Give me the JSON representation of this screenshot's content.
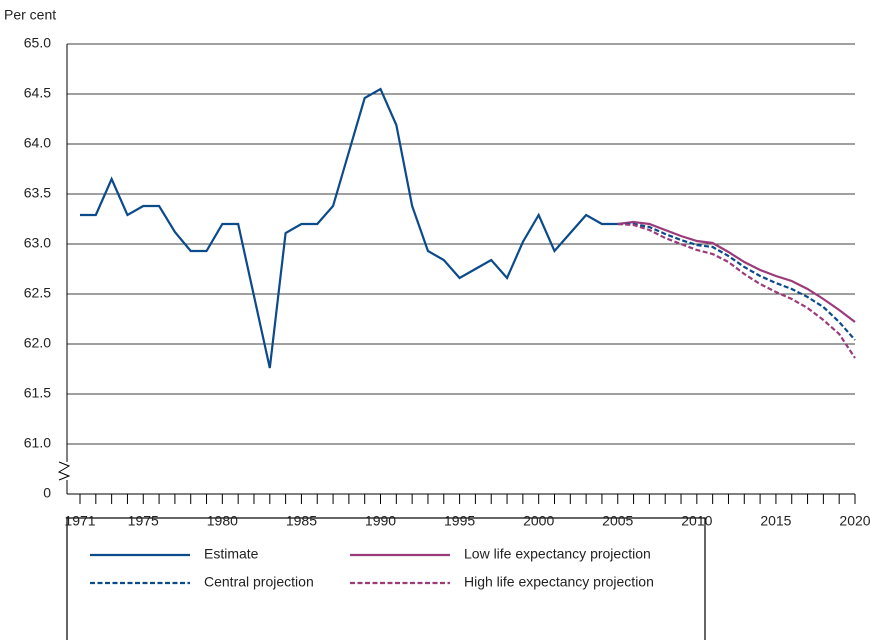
{
  "chart_data": {
    "type": "line",
    "y_label": "Per cent",
    "x": [
      1971,
      1972,
      1973,
      1974,
      1975,
      1976,
      1977,
      1978,
      1979,
      1980,
      1981,
      1982,
      1983,
      1984,
      1985,
      1986,
      1987,
      1988,
      1989,
      1990,
      1991,
      1992,
      1993,
      1994,
      1995,
      1996,
      1997,
      1998,
      1999,
      2000,
      2001,
      2002,
      2003,
      2004,
      2005,
      2006,
      2007,
      2008,
      2009,
      2010,
      2011,
      2012,
      2013,
      2014,
      2015,
      2016,
      2017,
      2018,
      2019,
      2020
    ],
    "series": [
      {
        "name": "Estimate",
        "color": "#0b4a8b",
        "dashed": false,
        "values": [
          63.29,
          63.29,
          63.65,
          63.29,
          63.38,
          63.38,
          63.12,
          62.93,
          62.93,
          63.2,
          63.2,
          62.48,
          61.76,
          63.11,
          63.2,
          63.2,
          63.38,
          63.92,
          64.46,
          64.55,
          64.19,
          63.38,
          62.93,
          62.84,
          62.66,
          62.75,
          62.84,
          62.66,
          63.02,
          63.29,
          62.93,
          63.11,
          63.29,
          63.2,
          63.2,
          null,
          null,
          null,
          null,
          null,
          null,
          null,
          null,
          null,
          null,
          null,
          null,
          null,
          null,
          null
        ]
      },
      {
        "name": "Low life expectancy projection",
        "color": "#9b3b7a",
        "dashed": false,
        "values": [
          null,
          null,
          null,
          null,
          null,
          null,
          null,
          null,
          null,
          null,
          null,
          null,
          null,
          null,
          null,
          null,
          null,
          null,
          null,
          null,
          null,
          null,
          null,
          null,
          null,
          null,
          null,
          null,
          null,
          null,
          null,
          null,
          null,
          null,
          63.2,
          63.22,
          63.2,
          63.14,
          63.08,
          63.03,
          63.01,
          62.92,
          62.82,
          62.74,
          62.68,
          62.63,
          62.55,
          62.45,
          62.34,
          62.22
        ]
      },
      {
        "name": "Central projection",
        "color": "#0b4a8b",
        "dashed": true,
        "values": [
          null,
          null,
          null,
          null,
          null,
          null,
          null,
          null,
          null,
          null,
          null,
          null,
          null,
          null,
          null,
          null,
          null,
          null,
          null,
          null,
          null,
          null,
          null,
          null,
          null,
          null,
          null,
          null,
          null,
          null,
          null,
          null,
          null,
          null,
          63.2,
          63.2,
          63.17,
          63.1,
          63.04,
          62.99,
          62.97,
          62.88,
          62.77,
          62.68,
          62.61,
          62.55,
          62.47,
          62.37,
          62.22,
          62.04
        ]
      },
      {
        "name": "High life expectancy projection",
        "color": "#9b3b7a",
        "dashed": true,
        "values": [
          null,
          null,
          null,
          null,
          null,
          null,
          null,
          null,
          null,
          null,
          null,
          null,
          null,
          null,
          null,
          null,
          null,
          null,
          null,
          null,
          null,
          null,
          null,
          null,
          null,
          null,
          null,
          null,
          null,
          null,
          null,
          null,
          null,
          null,
          63.2,
          63.19,
          63.14,
          63.06,
          63.0,
          62.94,
          62.9,
          62.82,
          62.7,
          62.6,
          62.52,
          62.45,
          62.36,
          62.24,
          62.1,
          61.86
        ]
      }
    ],
    "xlim": [
      1971,
      2020
    ],
    "xticks": [
      1971,
      1975,
      1980,
      1985,
      1990,
      1995,
      2000,
      2005,
      2010,
      2015,
      2020
    ],
    "ylim": [
      61,
      65
    ],
    "axis_break": true,
    "yticks": [
      0,
      {
        "value": 61,
        "label": "61.0"
      },
      {
        "value": 61.5,
        "label": "61.5"
      },
      {
        "value": 62,
        "label": "62.0"
      },
      {
        "value": 62.5,
        "label": "62.5"
      },
      {
        "value": 63,
        "label": "63.0"
      },
      {
        "value": 63.5,
        "label": "63.5"
      },
      {
        "value": 64,
        "label": "64.0"
      },
      {
        "value": 64.5,
        "label": "64.5"
      },
      {
        "value": 65,
        "label": "65.0"
      }
    ],
    "grid": true
  }
}
